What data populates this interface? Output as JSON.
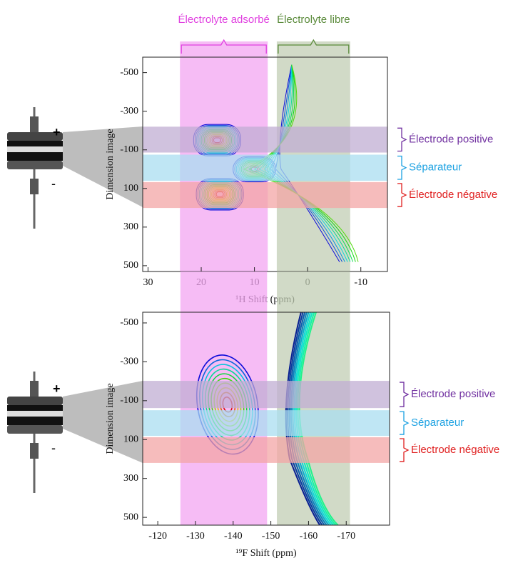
{
  "chart_data": [
    {
      "type": "contour",
      "x_label": "¹H Shift (ppm)",
      "y_label": "Dimension image",
      "xlim": [
        31,
        -15
      ],
      "ylim": [
        -580,
        530
      ],
      "xticks": [
        30,
        20,
        10,
        0,
        -10
      ],
      "yticks": [
        -500,
        -300,
        -100,
        100,
        300,
        500
      ],
      "x_regions": [
        {
          "name": "Électrolyte adsorbé",
          "range": [
            24,
            7.5
          ],
          "color": "#f3a6f1",
          "label_color": "#e040e0"
        },
        {
          "name": "Électrolyte libre",
          "range": [
            5.8,
            -8
          ],
          "color": "#c2cdb4",
          "label_color": "#5a8a3a"
        }
      ],
      "y_bands": [
        {
          "name": "Électrode positive",
          "range": [
            -220,
            -86
          ],
          "color": "#c0aed3",
          "label_color": "#7030a0"
        },
        {
          "name": "Séparateur",
          "range": [
            -75,
            60
          ],
          "color": "#a9def0",
          "label_color": "#1ba1e2"
        },
        {
          "name": "Électrode négative",
          "range": [
            67,
            201
          ],
          "color": "#f3a5a5",
          "label_color": "#e02020"
        }
      ]
    },
    {
      "type": "contour",
      "x_label": "¹⁹F Shift (ppm)",
      "y_label": "Dimension image",
      "xlim": [
        -116,
        -181.5
      ],
      "ylim": [
        -555,
        540
      ],
      "xticks": [
        -120,
        -130,
        -140,
        -150,
        -160,
        -170
      ],
      "yticks": [
        -500,
        -300,
        -100,
        100,
        300,
        500
      ],
      "x_regions": [
        {
          "range": [
            -126,
            -149
          ],
          "color": "#f3a6f1"
        },
        {
          "range": [
            -151.6,
            -171
          ],
          "color": "#c2cdb4"
        }
      ],
      "y_bands": [
        {
          "name": "Électrode positive",
          "range": [
            -202,
            -62
          ],
          "color": "#c0aed3",
          "label_color": "#7030a0"
        },
        {
          "name": "Séparateur",
          "range": [
            -51,
            81
          ],
          "color": "#a9def0",
          "label_color": "#1ba1e2"
        },
        {
          "name": "Électrode négative",
          "range": [
            88,
            220
          ],
          "color": "#f3a5a5",
          "label_color": "#e02020"
        }
      ]
    }
  ]
}
